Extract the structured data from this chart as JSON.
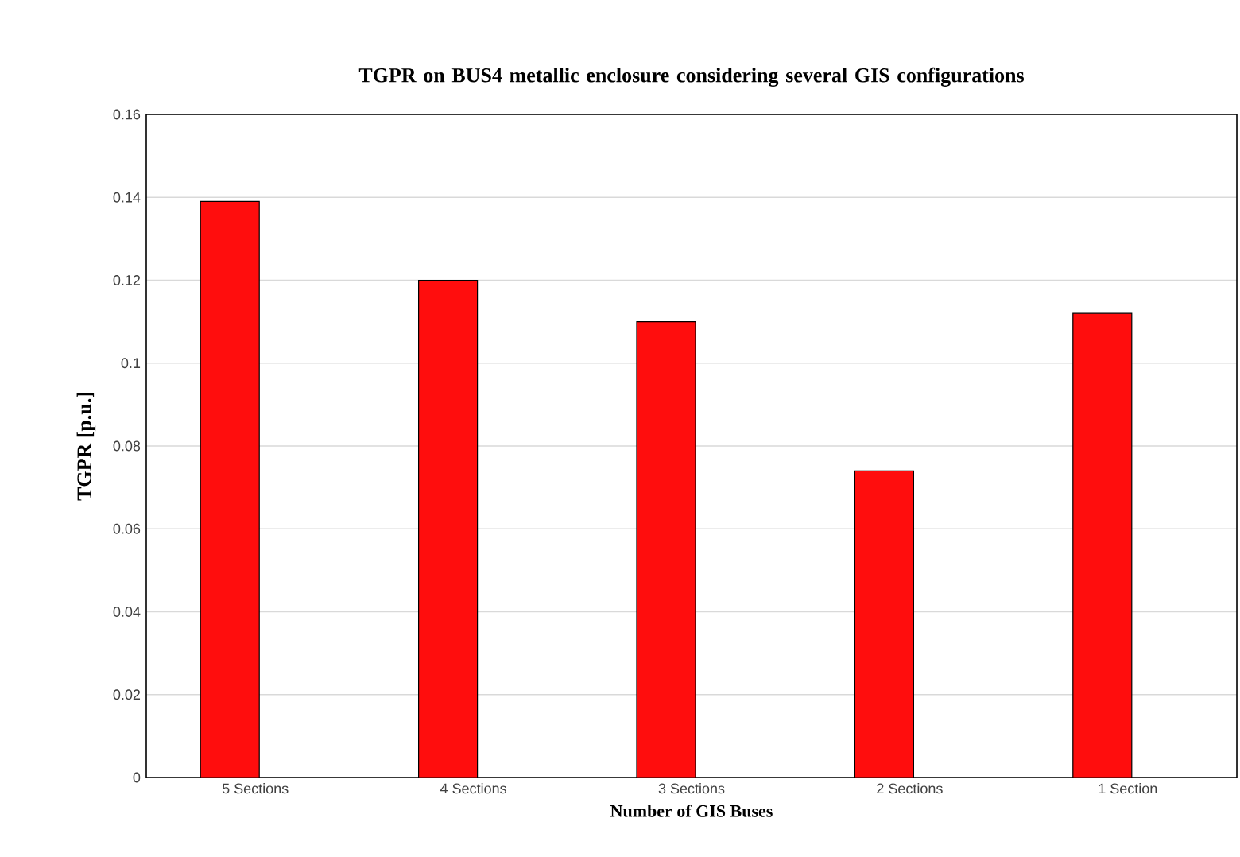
{
  "chart_data": {
    "type": "bar",
    "title": "TGPR on BUS4 metallic enclosure considering several GIS configurations",
    "xlabel": "Number of GIS Buses",
    "ylabel": "TGPR [p.u.]",
    "categories": [
      "5 Sections",
      "4 Sections",
      "3 Sections",
      "2 Sections",
      "1 Section"
    ],
    "values": [
      0.139,
      0.12,
      0.11,
      0.074,
      0.112
    ],
    "color": "#ff0d0d",
    "ylim": [
      0,
      0.16
    ],
    "yticks": [
      0,
      0.02,
      0.04,
      0.06,
      0.08,
      0.1,
      0.12,
      0.14,
      0.16
    ],
    "grid": "y"
  }
}
